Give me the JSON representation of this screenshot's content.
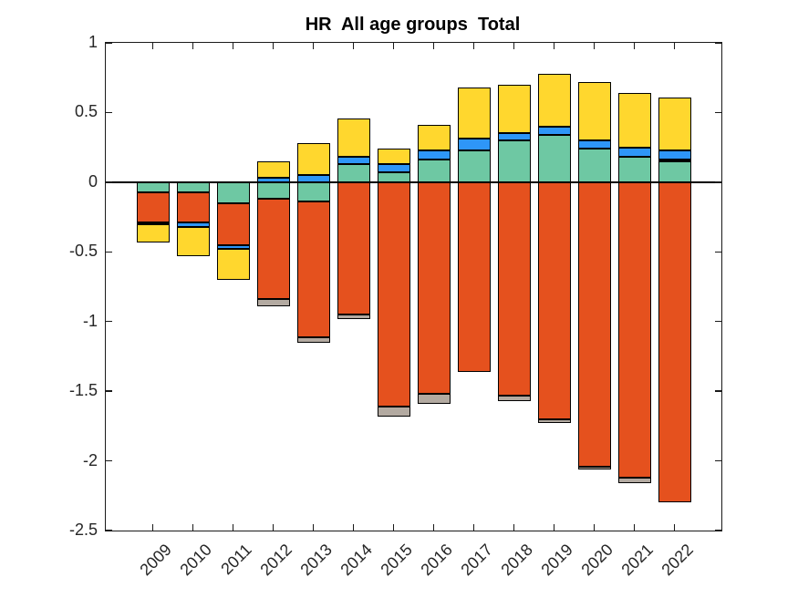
{
  "figure": {
    "background": "#FFFFFF"
  },
  "chart_data": {
    "type": "bar",
    "stacked": true,
    "title": "HR  All age groups  Total",
    "xlabel": "",
    "ylabel": "",
    "legend_position": "none",
    "grid": false,
    "zero_line": true,
    "ylim": [
      -2.5,
      1
    ],
    "y_ticks": [
      1,
      0.5,
      0,
      -0.5,
      -1,
      -1.5,
      -2,
      -2.5
    ],
    "y_tick_labels": [
      "1",
      "0.5",
      "0",
      "-0.5",
      "-1",
      "-1.5",
      "-2",
      "-2.5"
    ],
    "categories": [
      "2009",
      "2010",
      "2011",
      "2012",
      "2013",
      "2014",
      "2015",
      "2016",
      "2017",
      "2018",
      "2019",
      "2020",
      "2021",
      "2022"
    ],
    "series": [
      {
        "name": "teal",
        "color": "#6EC8A3",
        "values": [
          -0.07,
          -0.07,
          -0.15,
          -0.12,
          -0.14,
          0.13,
          0.07,
          0.16,
          0.23,
          0.3,
          0.34,
          0.24,
          0.18,
          0.15
        ]
      },
      {
        "name": "orange",
        "color": "#E5511E",
        "values": [
          -0.22,
          -0.22,
          -0.3,
          -0.72,
          -0.97,
          -0.95,
          -1.61,
          -1.52,
          -1.36,
          -1.53,
          -1.7,
          -2.04,
          -2.12,
          -2.3
        ]
      },
      {
        "name": "gray",
        "color": "#B3AAA1",
        "values": [
          0.0,
          0.0,
          0.0,
          -0.05,
          -0.04,
          -0.03,
          -0.07,
          -0.07,
          0.0,
          -0.04,
          -0.03,
          -0.02,
          -0.04,
          0.01
        ]
      },
      {
        "name": "blue",
        "color": "#2E96F8",
        "values": [
          -0.01,
          -0.03,
          -0.03,
          0.03,
          0.05,
          0.05,
          0.06,
          0.07,
          0.08,
          0.05,
          0.06,
          0.06,
          0.07,
          0.07
        ]
      },
      {
        "name": "yellow",
        "color": "#FFD72E",
        "values": [
          -0.13,
          -0.21,
          -0.22,
          0.12,
          0.23,
          0.28,
          0.11,
          0.18,
          0.37,
          0.35,
          0.38,
          0.42,
          0.39,
          0.38
        ]
      }
    ],
    "totals_positive": [
      0,
      0,
      0,
      0.15,
      0.28,
      0.46,
      0.24,
      0.41,
      0.68,
      0.7,
      0.78,
      0.72,
      0.64,
      0.61
    ],
    "totals_negative": [
      -0.43,
      -0.53,
      -0.7,
      -0.89,
      -1.15,
      -0.98,
      -1.68,
      -1.59,
      -1.36,
      -1.57,
      -1.73,
      -2.06,
      -2.16,
      -2.3
    ],
    "bar_edge_color": "#000000",
    "axis_color": "#1A1A1A",
    "tick_label_color": "#262626"
  }
}
